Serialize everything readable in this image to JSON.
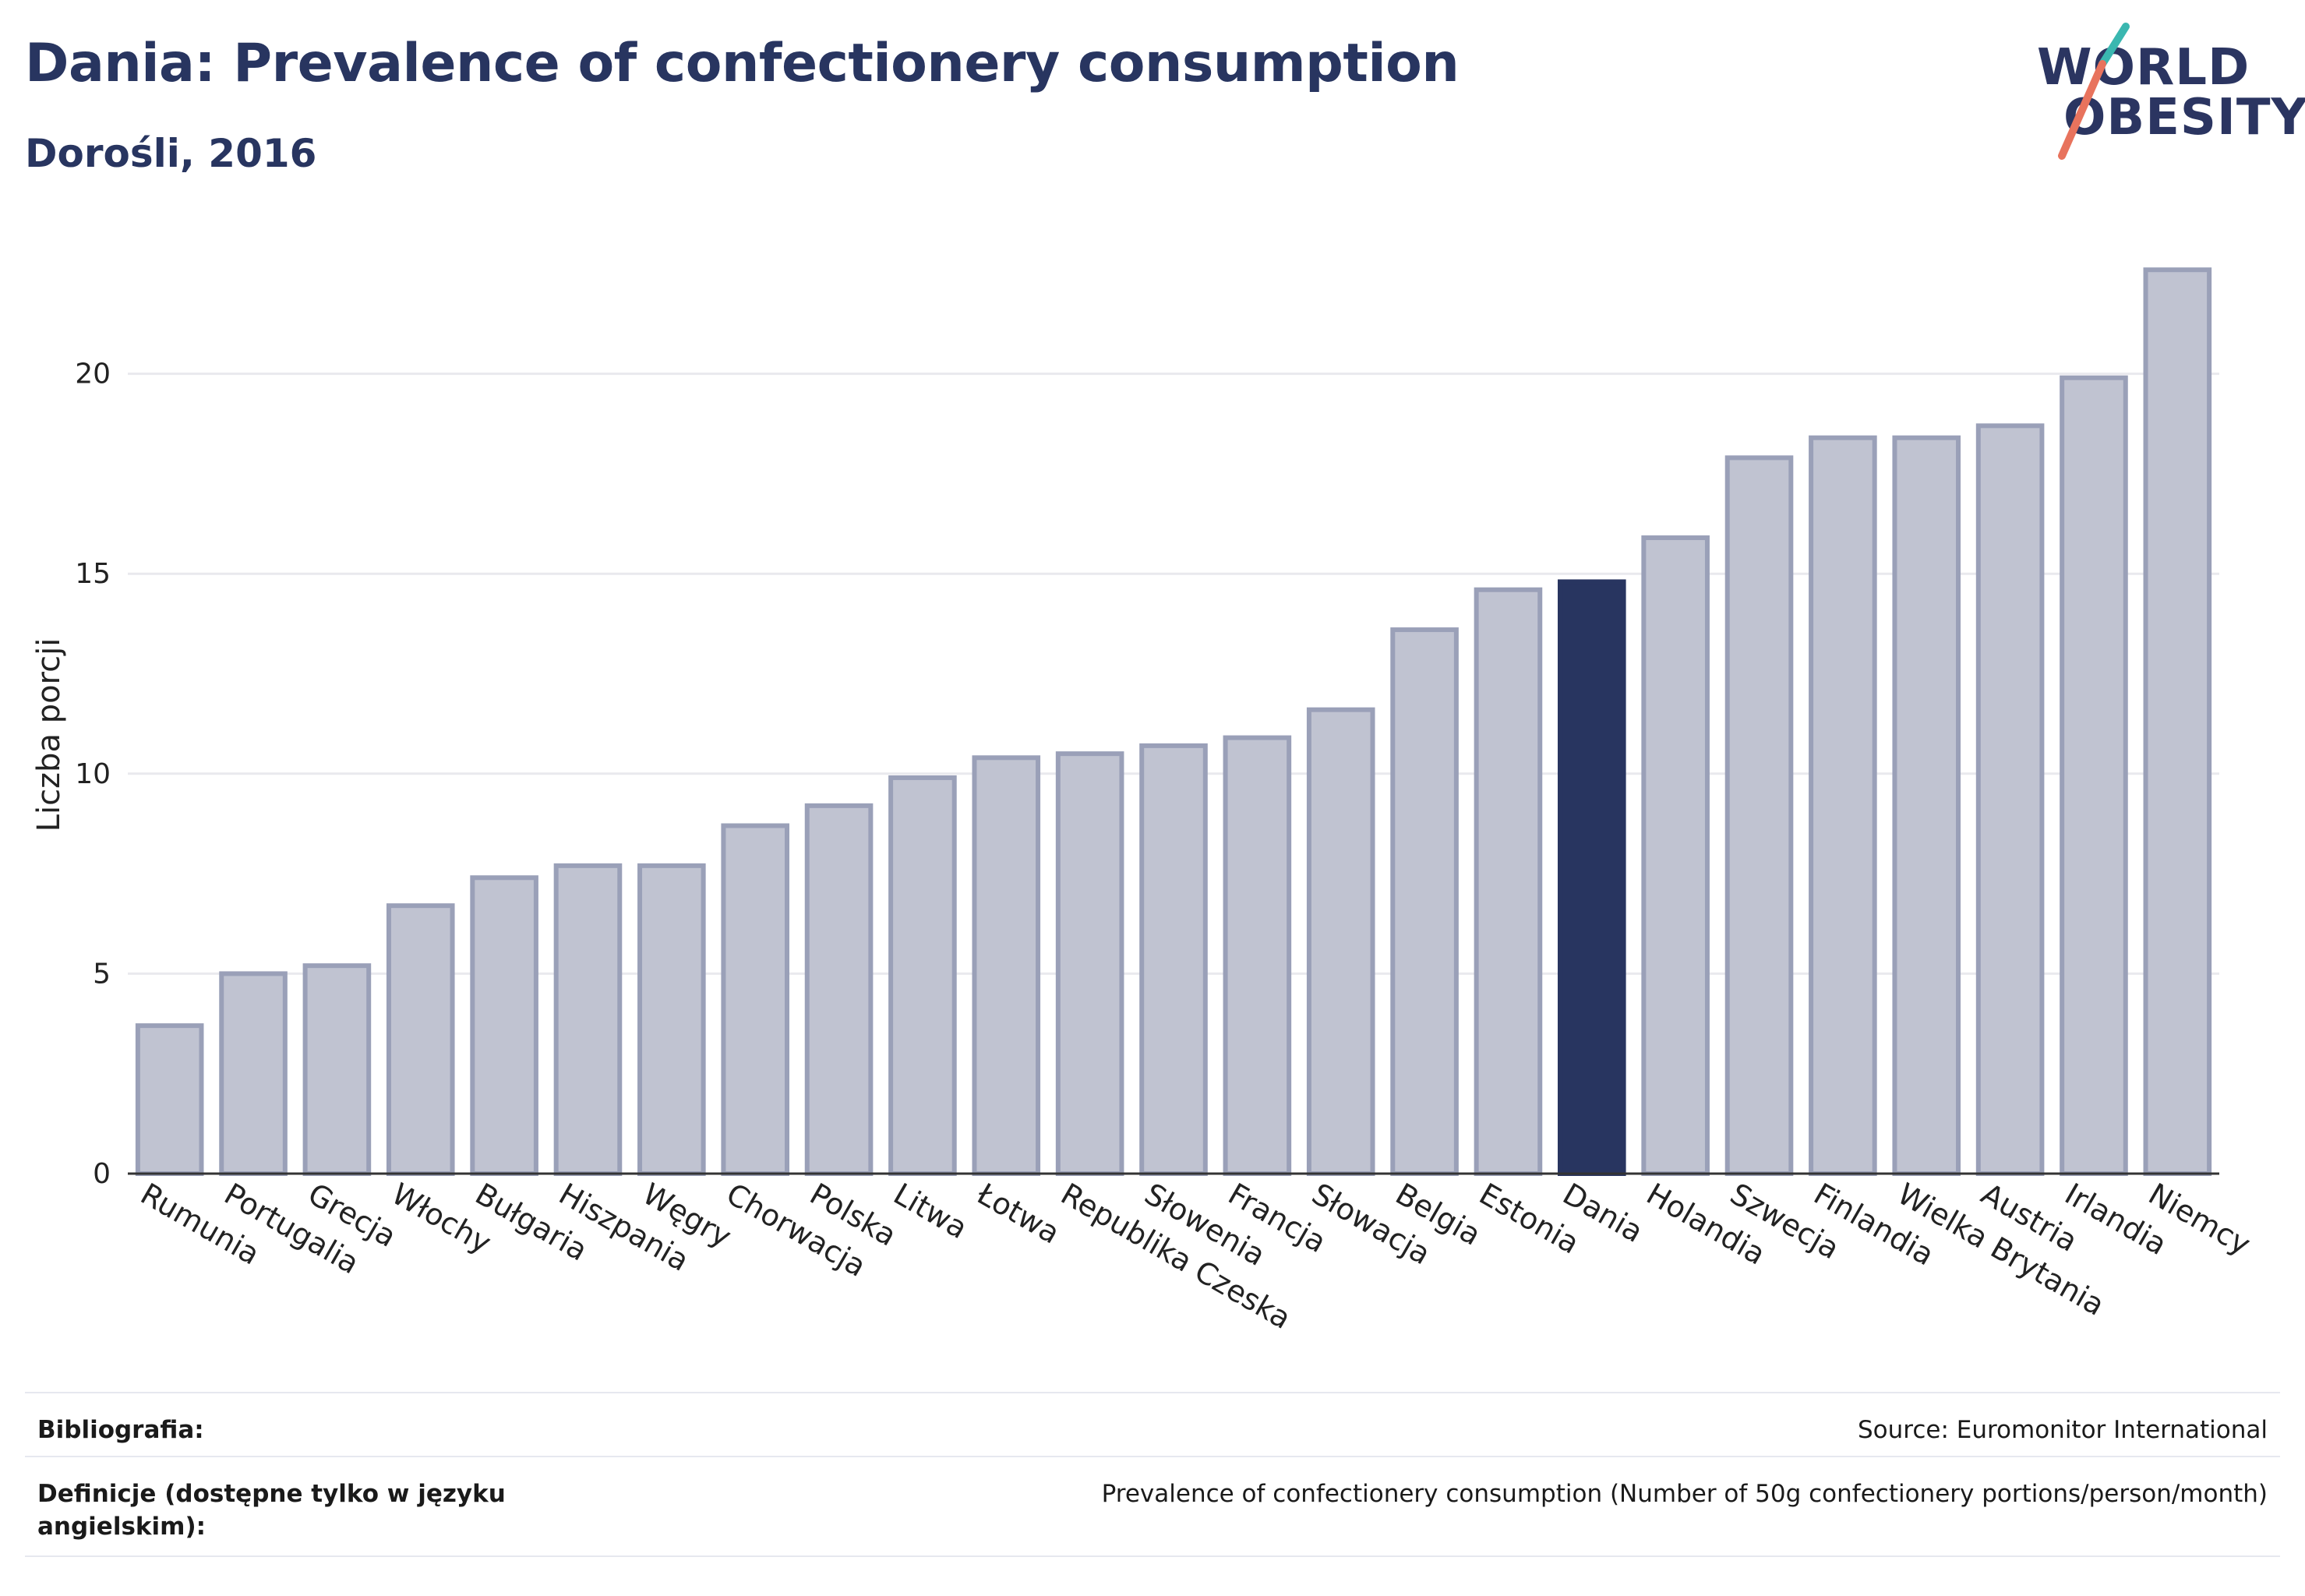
{
  "title": "Dania: Prevalence of confectionery consumption",
  "subtitle": "Dorośli, 2016",
  "logo": {
    "line1": "WORLD",
    "line2": "OBESITY",
    "colors": {
      "text": "#2b3561",
      "slash_top": "#3ab7b0",
      "slash_bottom": "#e8735d"
    }
  },
  "colors": {
    "bar": "#c0c3d1",
    "bar_stroke": "#9aa0b8",
    "highlight": "#283560",
    "grid": "#e9e9ee",
    "axis": "#333333"
  },
  "chart_data": {
    "type": "bar",
    "title": "Dania: Prevalence of confectionery consumption",
    "subtitle": "Dorośli, 2016",
    "xlabel": "",
    "ylabel": "Liczba porcji",
    "ylim": [
      0,
      23.5
    ],
    "yticks": [
      0,
      5,
      10,
      15,
      20
    ],
    "grid": true,
    "highlight": "Dania",
    "categories": [
      "Rumunia",
      "Portugalia",
      "Grecja",
      "Włochy",
      "Bułgaria",
      "Hiszpania",
      "Węgry",
      "Chorwacja",
      "Polska",
      "Litwa",
      "Łotwa",
      "Republika Czeska",
      "Słowenia",
      "Francja",
      "Słowacja",
      "Belgia",
      "Estonia",
      "Dania",
      "Holandia",
      "Szwecja",
      "Finlandia",
      "Wielka Brytania",
      "Austria",
      "Irlandia",
      "Niemcy"
    ],
    "values": [
      3.7,
      5.0,
      5.2,
      6.7,
      7.4,
      7.7,
      7.7,
      8.7,
      9.2,
      9.9,
      10.4,
      10.5,
      10.7,
      10.9,
      11.6,
      13.6,
      14.6,
      14.8,
      15.9,
      17.9,
      18.4,
      18.4,
      18.7,
      19.9,
      22.6
    ]
  },
  "footer": {
    "bibliography_label": "Bibliografia:",
    "bibliography_value": "Source: Euromonitor International",
    "definitions_label": "Definicje (dostępne tylko w języku angielskim):",
    "definitions_value": "Prevalence of confectionery consumption (Number of 50g confectionery portions/person/month)"
  }
}
